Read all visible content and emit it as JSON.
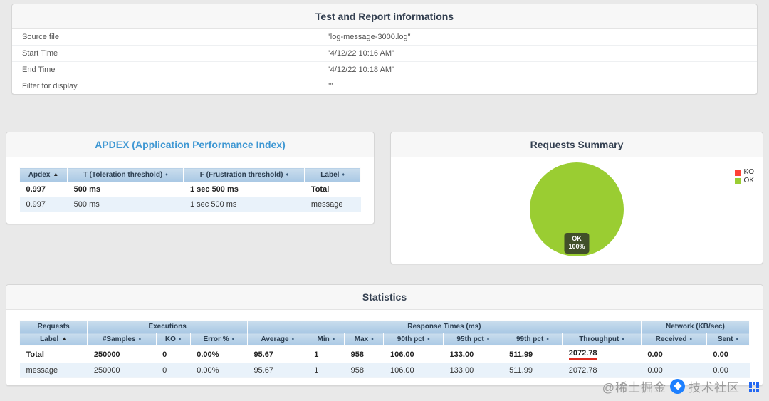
{
  "page": {
    "watermark_prefix": "@稀土掘金",
    "watermark_suffix": "技术社区"
  },
  "test_info": {
    "title": "Test and Report informations",
    "rows": [
      {
        "label": "Source file",
        "value": "\"log-message-3000.log\""
      },
      {
        "label": "Start Time",
        "value": "\"4/12/22 10:16 AM\""
      },
      {
        "label": "End Time",
        "value": "\"4/12/22 10:18 AM\""
      },
      {
        "label": "Filter for display",
        "value": "\"\""
      }
    ]
  },
  "apdex": {
    "title": "APDEX (Application Performance Index)",
    "title_color": "#3e97d3",
    "columns": [
      {
        "label": "Apdex",
        "sort": "asc"
      },
      {
        "label": "T (Toleration threshold)",
        "sort": "both"
      },
      {
        "label": "F (Frustration threshold)",
        "sort": "both"
      },
      {
        "label": "Label",
        "sort": "both"
      }
    ],
    "rows": [
      [
        "0.997",
        "500 ms",
        "1 sec 500 ms",
        "Total"
      ],
      [
        "0.997",
        "500 ms",
        "1 sec 500 ms",
        "message"
      ]
    ]
  },
  "requests_summary": {
    "title": "Requests Summary",
    "legend": [
      {
        "label": "KO",
        "color": "#ff4136"
      },
      {
        "label": "OK",
        "color": "#9acd32"
      }
    ],
    "pie": {
      "label_line1": "OK",
      "label_line2": "100%",
      "color": "#9acd32"
    }
  },
  "chart_data": {
    "type": "pie",
    "title": "Requests Summary",
    "labels": [
      "OK",
      "KO"
    ],
    "values": [
      100,
      0
    ],
    "colors": [
      "#9acd32",
      "#ff4136"
    ],
    "legend_position": "top-right",
    "annotations": [
      "OK 100%"
    ]
  },
  "statistics": {
    "title": "Statistics",
    "groups": [
      {
        "label": "Requests",
        "colspan": 1
      },
      {
        "label": "Executions",
        "colspan": 3
      },
      {
        "label": "Response Times (ms)",
        "colspan": 7
      },
      {
        "label": "Network (KB/sec)",
        "colspan": 2
      }
    ],
    "columns": [
      {
        "label": "Label",
        "sort": "asc"
      },
      {
        "label": "#Samples",
        "sort": "both"
      },
      {
        "label": "KO",
        "sort": "both"
      },
      {
        "label": "Error %",
        "sort": "both"
      },
      {
        "label": "Average",
        "sort": "both"
      },
      {
        "label": "Min",
        "sort": "both"
      },
      {
        "label": "Max",
        "sort": "both"
      },
      {
        "label": "90th pct",
        "sort": "both"
      },
      {
        "label": "95th pct",
        "sort": "both"
      },
      {
        "label": "99th pct",
        "sort": "both"
      },
      {
        "label": "Throughput",
        "sort": "both"
      },
      {
        "label": "Received",
        "sort": "both"
      },
      {
        "label": "Sent",
        "sort": "both"
      }
    ],
    "rows": [
      [
        "Total",
        "250000",
        "0",
        "0.00%",
        "95.67",
        "1",
        "958",
        "106.00",
        "133.00",
        "511.99",
        "2072.78",
        "0.00",
        "0.00"
      ],
      [
        "message",
        "250000",
        "0",
        "0.00%",
        "95.67",
        "1",
        "958",
        "106.00",
        "133.00",
        "511.99",
        "2072.78",
        "0.00",
        "0.00"
      ]
    ],
    "annotation": {
      "row": 0,
      "col": 10,
      "style": "red-underline"
    }
  }
}
